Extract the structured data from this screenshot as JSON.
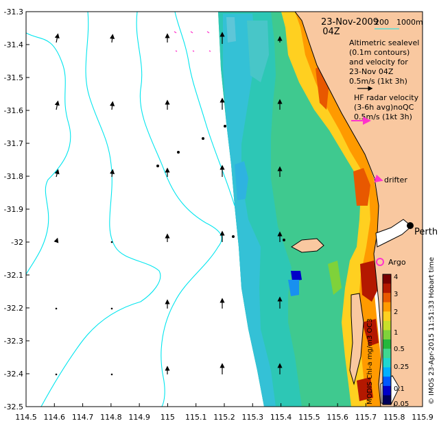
{
  "map": {
    "date": "23-Nov-2009",
    "time": "04Z",
    "contour_labels": {
      "depth1": "200",
      "depth2": "1000m"
    },
    "legend": {
      "altimetry_lines": [
        "Altimetric sealevel",
        "(0.1m contours)",
        "and velocity for",
        "23-Nov 04Z",
        "0.5m/s (1kt 3h)"
      ],
      "hf_lines": [
        "HF radar velocity",
        "(3-6h avg)noQC",
        "0.5m/s (1kt 3h)"
      ],
      "drifter": "drifter",
      "argo": "Argo"
    },
    "place": "Perth",
    "colorbar_title": "MODIS Chl-a mg/m3 OC3",
    "credit": "© IMOS 23-Apr-2015 11:51:33 Hobart time",
    "x_ticks": [
      "114.5",
      "114.6",
      "114.7",
      "114.8",
      "114.9",
      "115",
      "115.1",
      "115.2",
      "115.3",
      "115.4",
      "115.5",
      "115.6",
      "115.7",
      "115.8",
      "115.9"
    ],
    "y_ticks": [
      "-31.3",
      "-31.4",
      "-31.5",
      "-31.6",
      "-31.7",
      "-31.8",
      "-31.9",
      "-32",
      "-32.1",
      "-32.2",
      "-32.3",
      "-32.4",
      "-32.5"
    ],
    "colorbar_ticks": [
      "4",
      "3",
      "2",
      "1",
      "0.5",
      "0.25",
      "0.1",
      "0.05"
    ],
    "colors": {
      "land": "#f9c8a0",
      "contour": "#00e5ee",
      "hf_arrow": "#ff33cc",
      "colorbar": [
        "#00005a",
        "#0000c8",
        "#0058ff",
        "#00b0ff",
        "#1ed8d0",
        "#3fd890",
        "#23b73c",
        "#7fd23a",
        "#c8e02a",
        "#ffd020",
        "#ff9a00",
        "#e85800",
        "#b41800",
        "#780000"
      ]
    }
  }
}
